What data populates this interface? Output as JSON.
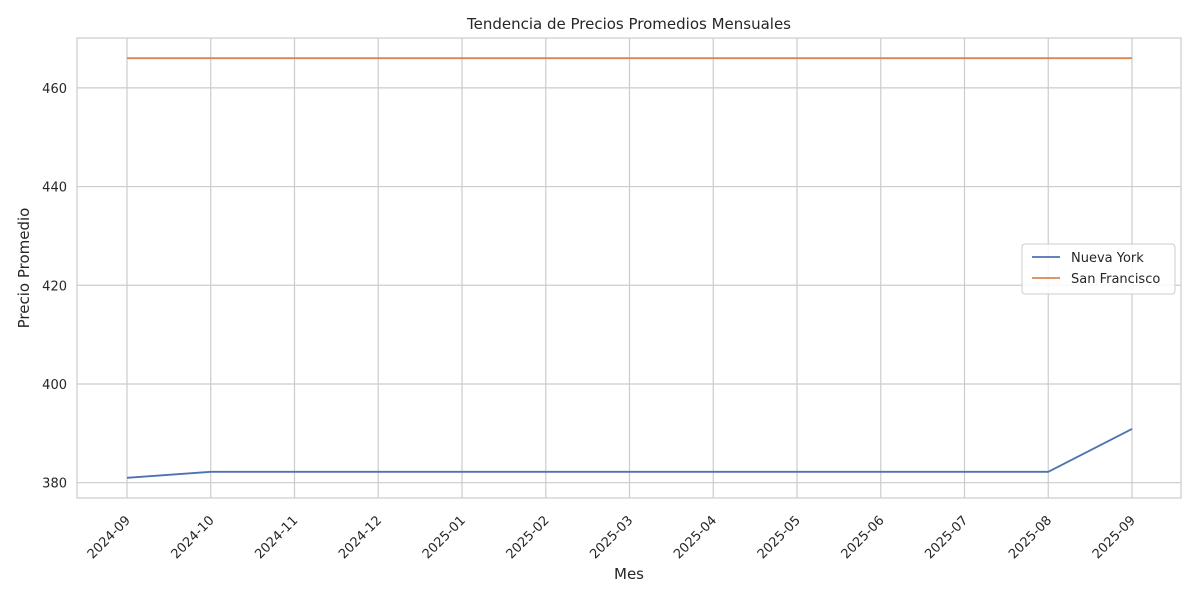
{
  "chart_data": {
    "type": "line",
    "title": "Tendencia de Precios Promedios Mensuales",
    "xlabel": "Mes",
    "ylabel": "Precio Promedio",
    "categories": [
      "2024-09",
      "2024-10",
      "2024-11",
      "2024-12",
      "2025-01",
      "2025-02",
      "2025-03",
      "2025-04",
      "2025-05",
      "2025-06",
      "2025-07",
      "2025-08",
      "2025-09"
    ],
    "yticks": [
      380,
      400,
      420,
      440,
      460
    ],
    "ylim": [
      376.9,
      470.1
    ],
    "grid": true,
    "legend_position": "center-right",
    "series": [
      {
        "name": "Nueva York",
        "color": "#4c72b0",
        "values": [
          381.0,
          382.2,
          382.2,
          382.2,
          382.2,
          382.2,
          382.2,
          382.2,
          382.2,
          382.2,
          382.2,
          382.2,
          390.9
        ]
      },
      {
        "name": "San Francisco",
        "color": "#dd8452",
        "values": [
          466.0,
          466.0,
          466.0,
          466.0,
          466.0,
          466.0,
          466.0,
          466.0,
          466.0,
          466.0,
          466.0,
          466.0,
          466.0
        ]
      }
    ]
  }
}
